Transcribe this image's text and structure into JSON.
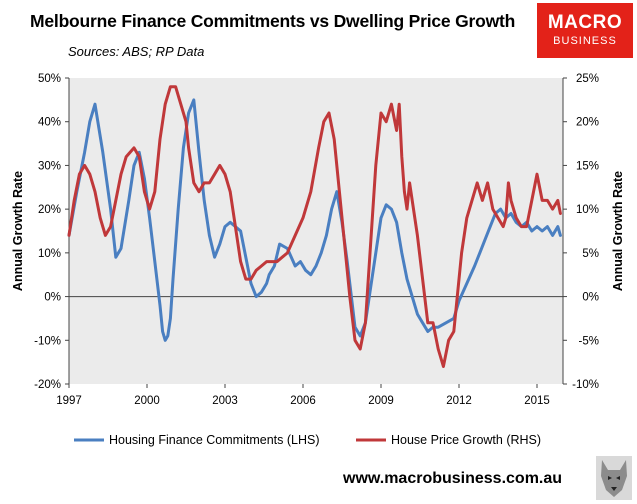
{
  "header": {
    "title": "Melbourne Finance Commitments vs Dwelling Price Growth",
    "sources": "Sources: ABS; RP Data"
  },
  "logo": {
    "line1": "MACRO",
    "line2": "BUSINESS",
    "color": "#e32219"
  },
  "footer": {
    "url": "www.macrobusiness.com.au"
  },
  "colors": {
    "plot_bg": "#ebebeb",
    "lhs_series": "#4a7fc1",
    "rhs_series": "#c0383a"
  },
  "chart_data": {
    "type": "line",
    "title": "Melbourne Finance Commitments vs Dwelling Price Growth",
    "ylabel_left": "Annual Growth Rate",
    "ylabel_right": "Annual Growth Rate",
    "xlim": [
      1997,
      2016
    ],
    "ylim_left": [
      -20,
      50
    ],
    "ylim_right": [
      -10,
      25
    ],
    "x_ticks": [
      1997,
      2000,
      2003,
      2006,
      2009,
      2012,
      2015
    ],
    "y_ticks_left": [
      "-20%",
      "-10%",
      "0%",
      "10%",
      "20%",
      "30%",
      "40%",
      "50%"
    ],
    "y_ticks_right": [
      "-10%",
      "-5%",
      "0%",
      "5%",
      "10%",
      "15%",
      "20%",
      "25%"
    ],
    "grid": false,
    "legend_position": "bottom",
    "series": [
      {
        "name": "Housing Finance Commitments (LHS)",
        "axis": "left",
        "color": "#4a7fc1",
        "x": [
          1997.0,
          1997.3,
          1997.6,
          1997.8,
          1998.0,
          1998.3,
          1998.6,
          1998.8,
          1999.0,
          1999.3,
          1999.5,
          1999.7,
          1999.9,
          2000.1,
          2000.3,
          2000.5,
          2000.6,
          2000.7,
          2000.8,
          2000.9,
          2001.0,
          2001.2,
          2001.4,
          2001.6,
          2001.8,
          2002.0,
          2002.2,
          2002.4,
          2002.6,
          2002.8,
          2003.0,
          2003.2,
          2003.4,
          2003.6,
          2003.8,
          2004.0,
          2004.2,
          2004.4,
          2004.6,
          2004.7,
          2004.9,
          2005.1,
          2005.4,
          2005.7,
          2005.9,
          2006.1,
          2006.3,
          2006.5,
          2006.7,
          2006.9,
          2007.1,
          2007.3,
          2007.5,
          2007.7,
          2007.9,
          2008.0,
          2008.2,
          2008.4,
          2008.6,
          2008.8,
          2009.0,
          2009.2,
          2009.4,
          2009.6,
          2009.8,
          2010.0,
          2010.2,
          2010.4,
          2010.6,
          2010.8,
          2011.0,
          2011.2,
          2011.5,
          2011.8,
          2012.0,
          2012.3,
          2012.6,
          2012.8,
          2013.0,
          2013.2,
          2013.4,
          2013.6,
          2013.8,
          2014.0,
          2014.2,
          2014.4,
          2014.6,
          2014.8,
          2015.0,
          2015.2,
          2015.4,
          2015.6,
          2015.8,
          2015.9
        ],
        "y": [
          14,
          24,
          33,
          40,
          44,
          33,
          20,
          9,
          11,
          22,
          30,
          33,
          27,
          18,
          8,
          -2,
          -8,
          -10,
          -9,
          -5,
          4,
          20,
          34,
          42,
          45,
          33,
          22,
          14,
          9,
          12,
          16,
          17,
          16,
          15,
          9,
          3,
          0,
          1,
          3,
          5,
          7,
          12,
          11,
          7,
          8,
          6,
          5,
          7,
          10,
          14,
          20,
          24,
          17,
          8,
          -2,
          -7,
          -9,
          -6,
          2,
          10,
          18,
          21,
          20,
          17,
          10,
          4,
          0,
          -4,
          -6,
          -8,
          -7,
          -7,
          -6,
          -5,
          -1,
          3,
          7,
          10,
          13,
          16,
          19,
          20,
          18,
          19,
          17,
          16,
          17,
          15,
          16,
          15,
          16,
          14,
          16,
          14
        ]
      },
      {
        "name": "House Price Growth (RHS)",
        "axis": "right",
        "color": "#c0383a",
        "x": [
          1997.0,
          1997.2,
          1997.4,
          1997.6,
          1997.8,
          1998.0,
          1998.2,
          1998.4,
          1998.6,
          1998.8,
          1999.0,
          1999.2,
          1999.5,
          1999.7,
          1999.9,
          2000.1,
          2000.3,
          2000.5,
          2000.7,
          2000.9,
          2001.1,
          2001.3,
          2001.5,
          2001.6,
          2001.8,
          2002.0,
          2002.2,
          2002.4,
          2002.6,
          2002.8,
          2003.0,
          2003.2,
          2003.4,
          2003.6,
          2003.8,
          2004.0,
          2004.2,
          2004.4,
          2004.6,
          2004.8,
          2005.0,
          2005.2,
          2005.4,
          2005.7,
          2006.0,
          2006.3,
          2006.6,
          2006.8,
          2007.0,
          2007.2,
          2007.4,
          2007.6,
          2007.8,
          2008.0,
          2008.2,
          2008.4,
          2008.6,
          2008.8,
          2009.0,
          2009.2,
          2009.4,
          2009.6,
          2009.7,
          2009.8,
          2009.9,
          2010.0,
          2010.1,
          2010.2,
          2010.4,
          2010.6,
          2010.8,
          2011.0,
          2011.2,
          2011.4,
          2011.6,
          2011.8,
          2011.9,
          2012.0,
          2012.1,
          2012.2,
          2012.3,
          2012.5,
          2012.7,
          2012.9,
          2013.1,
          2013.3,
          2013.5,
          2013.7,
          2013.8,
          2013.9,
          2014.0,
          2014.2,
          2014.4,
          2014.6,
          2014.8,
          2015.0,
          2015.2,
          2015.3,
          2015.4,
          2015.6,
          2015.8,
          2015.9
        ],
        "y": [
          7,
          11,
          14,
          15,
          14,
          12,
          9,
          7,
          8,
          11,
          14,
          16,
          17,
          16,
          12,
          10,
          12,
          18,
          22,
          24,
          24,
          22,
          20,
          17,
          13,
          12,
          13,
          13,
          14,
          15,
          14,
          12,
          8,
          4,
          2,
          2,
          3,
          3.5,
          4,
          4,
          4,
          4.5,
          5,
          7,
          9,
          12,
          17,
          20,
          21,
          18,
          12,
          6,
          0,
          -5,
          -6,
          -3,
          6,
          15,
          21,
          20,
          22,
          19,
          22,
          16,
          12,
          10,
          13,
          11,
          7,
          2,
          -3,
          -3,
          -6,
          -8,
          -5,
          -4,
          -1,
          2,
          5,
          7,
          9,
          11,
          13,
          11,
          13,
          10,
          9,
          8,
          9,
          13,
          11,
          9,
          8,
          8,
          11,
          14,
          11,
          11,
          11,
          10,
          11,
          9.5
        ]
      }
    ]
  }
}
